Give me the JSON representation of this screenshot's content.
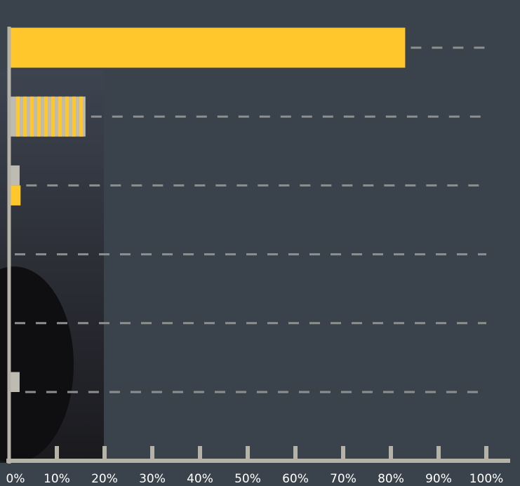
{
  "chart_data": {
    "type": "bar",
    "orientation": "horizontal",
    "categories": [
      null,
      null,
      null,
      null,
      null,
      null
    ],
    "series": [
      {
        "color": "#bdbbb2",
        "values": [
          0,
          16,
          2.2,
          0,
          0,
          2.2
        ]
      },
      {
        "color": "#ffc72c",
        "values": [
          83,
          16,
          2.4,
          0,
          0,
          0
        ]
      }
    ],
    "xlim": [
      0,
      100
    ],
    "xticks": [
      {
        "value": 0,
        "label": "0%"
      },
      {
        "value": 10,
        "label": "10%"
      },
      {
        "value": 20,
        "label": "20%"
      },
      {
        "value": 30,
        "label": "30%"
      },
      {
        "value": 40,
        "label": "40%"
      },
      {
        "value": 50,
        "label": "50%"
      },
      {
        "value": 60,
        "label": "60%"
      },
      {
        "value": 70,
        "label": "70%"
      },
      {
        "value": 80,
        "label": "80%"
      },
      {
        "value": 90,
        "label": "90%"
      },
      {
        "value": 100,
        "label": "100%"
      }
    ]
  }
}
